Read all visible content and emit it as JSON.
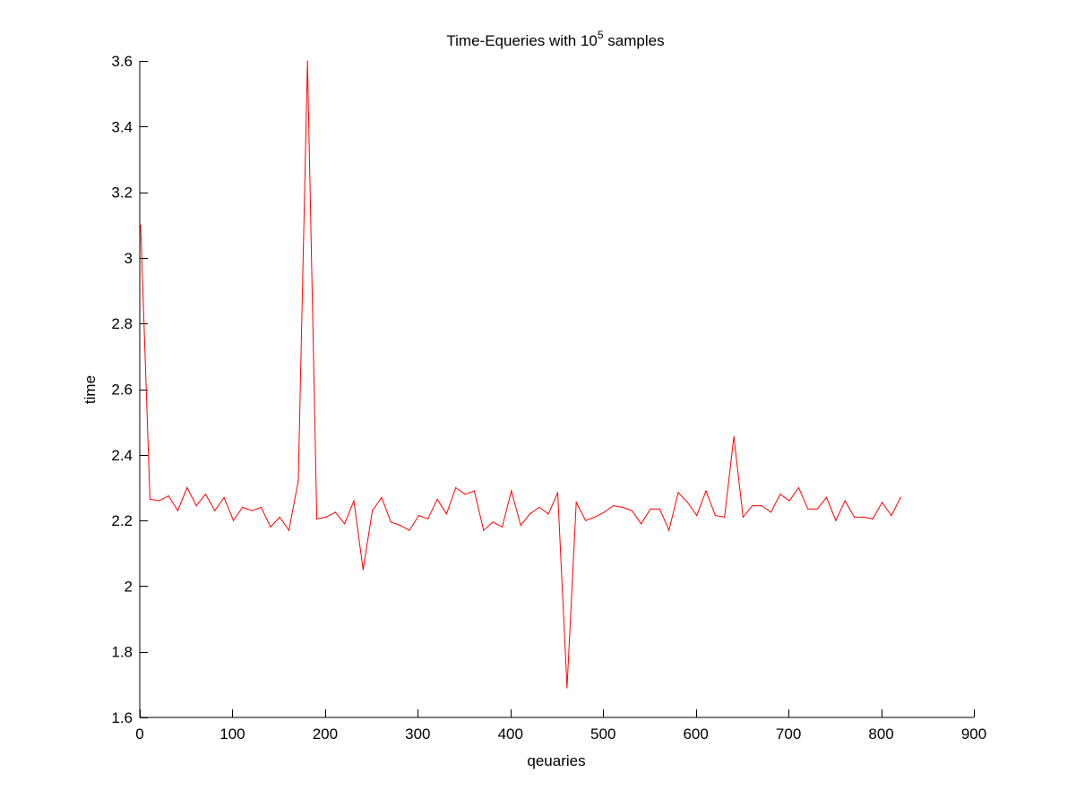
{
  "chart_data": {
    "type": "line",
    "title": {
      "prefix": "Time-Equeries with 10",
      "superscript": "5",
      "suffix": " samples"
    },
    "xlabel": "qeuaries",
    "ylabel": "time",
    "xlim": [
      0,
      900
    ],
    "ylim": [
      1.6,
      3.6
    ],
    "xticks": [
      0,
      100,
      200,
      300,
      400,
      500,
      600,
      700,
      800,
      900
    ],
    "yticks": [
      1.6,
      1.8,
      2.0,
      2.2,
      2.4,
      2.6,
      2.8,
      3.0,
      3.2,
      3.4,
      3.6
    ],
    "xtick_labels": [
      "0",
      "100",
      "200",
      "300",
      "400",
      "500",
      "600",
      "700",
      "800",
      "900"
    ],
    "ytick_labels": [
      "1.6",
      "1.8",
      "2",
      "2.2",
      "2.4",
      "2.6",
      "2.8",
      "3",
      "3.2",
      "3.4",
      "3.6"
    ],
    "grid": false,
    "legend": "none",
    "series": [
      {
        "color": "#ff0000",
        "x": [
          1,
          11,
          21,
          31,
          41,
          51,
          61,
          71,
          81,
          91,
          101,
          111,
          121,
          131,
          141,
          151,
          161,
          171,
          181,
          191,
          201,
          211,
          221,
          231,
          241,
          251,
          261,
          271,
          281,
          291,
          301,
          311,
          321,
          331,
          341,
          351,
          361,
          371,
          381,
          391,
          401,
          411,
          421,
          431,
          441,
          451,
          461,
          471,
          481,
          491,
          501,
          511,
          521,
          531,
          541,
          551,
          561,
          571,
          581,
          591,
          601,
          611,
          621,
          631,
          641,
          651,
          661,
          671,
          681,
          691,
          701,
          711,
          721,
          731,
          741,
          751,
          761,
          771,
          781,
          791,
          801,
          811,
          821
        ],
        "y": [
          3.1,
          2.265,
          2.26,
          2.275,
          2.23,
          2.3,
          2.245,
          2.28,
          2.23,
          2.27,
          2.2,
          2.24,
          2.23,
          2.24,
          2.18,
          2.21,
          2.17,
          2.32,
          3.6,
          2.205,
          2.21,
          2.225,
          2.19,
          2.26,
          2.05,
          2.23,
          2.27,
          2.195,
          2.185,
          2.17,
          2.215,
          2.205,
          2.265,
          2.22,
          2.3,
          2.28,
          2.29,
          2.17,
          2.195,
          2.18,
          2.29,
          2.185,
          2.22,
          2.24,
          2.22,
          2.285,
          1.69,
          2.255,
          2.2,
          2.21,
          2.225,
          2.245,
          2.24,
          2.23,
          2.19,
          2.235,
          2.235,
          2.17,
          2.285,
          2.255,
          2.215,
          2.29,
          2.215,
          2.21,
          2.455,
          2.21,
          2.245,
          2.245,
          2.225,
          2.28,
          2.26,
          2.3,
          2.235,
          2.235,
          2.27,
          2.2,
          2.26,
          2.21,
          2.21,
          2.205,
          2.255,
          2.215,
          2.27
        ]
      }
    ]
  }
}
